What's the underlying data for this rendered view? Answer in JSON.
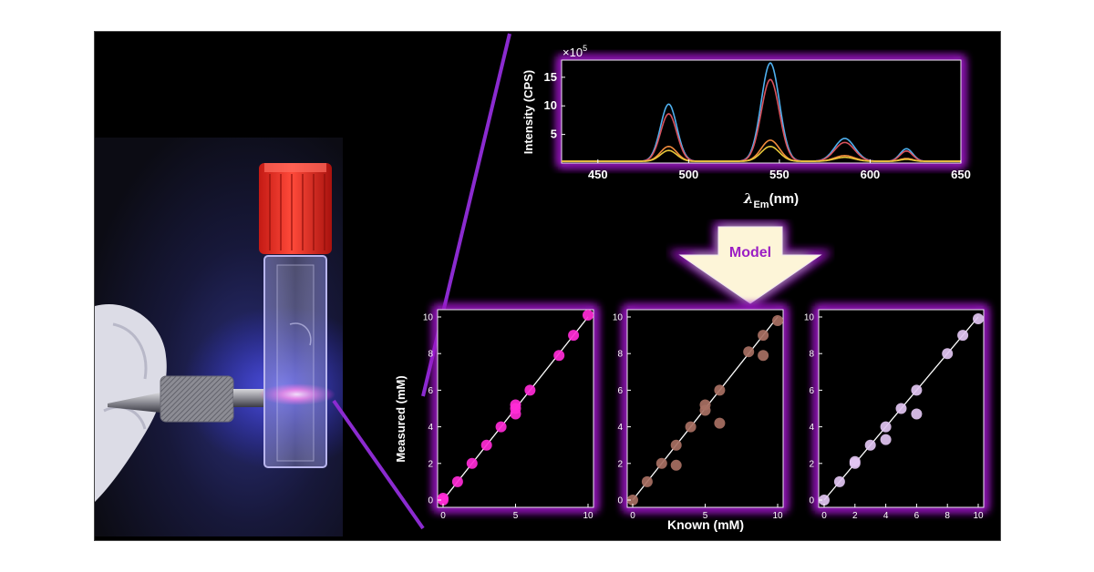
{
  "colors": {
    "glow": "#9b1fc4",
    "pink": "#ff2bd6",
    "brown": "#a87063",
    "lavender": "#e2c6f2",
    "arrow": "#fdf5d8",
    "arrow_label": "#9b1fc4"
  },
  "photo": {
    "subject": "cuvette-with-pipe-fitting"
  },
  "spectrum": {
    "ylabel": "Intensity (CPS)",
    "multiplier_base": "×10",
    "multiplier_exp": "5",
    "xlabel_symbol": "λ",
    "xlabel_sub": "Em",
    "xlabel_unit": "(nm)",
    "xticks": [
      "450",
      "500",
      "550",
      "600",
      "650"
    ],
    "yticks": [
      "5",
      "10",
      "15"
    ]
  },
  "arrow": {
    "label": "Model"
  },
  "scatter": {
    "ylabel": "Measured (mM)",
    "xlabel": "Known  (mM)"
  },
  "chart_data": [
    {
      "type": "line",
      "xlabel": "λEm(nm)",
      "ylabel": "Intensity (CPS)",
      "xlim": [
        430,
        650
      ],
      "ylim": [
        0,
        18
      ],
      "y_multiplier": "×10^5",
      "peaks": [
        489,
        545,
        586,
        620
      ],
      "series": [
        {
          "color": "#4fb0ef",
          "heights": [
            10,
            17.2,
            4,
            2.2
          ]
        },
        {
          "color": "#d9535e",
          "heights": [
            8.3,
            14.3,
            3.3,
            1.8
          ]
        },
        {
          "color": "#f08b3c",
          "heights": [
            2.6,
            3.7,
            1.0,
            0.5
          ]
        },
        {
          "color": "#e8c83a",
          "heights": [
            1.9,
            2.6,
            0.7,
            0.35
          ]
        }
      ]
    },
    {
      "type": "scatter",
      "xlim": [
        0,
        10
      ],
      "ylim": [
        0,
        10
      ],
      "color": "#ff2bd6",
      "xticks": [
        "0",
        "5",
        "10"
      ],
      "yticks": [
        "0",
        "2",
        "4",
        "6",
        "8",
        "10"
      ],
      "x": [
        0,
        0,
        1,
        2,
        3,
        4,
        5,
        5,
        5,
        6,
        8,
        9,
        10
      ],
      "y": [
        0,
        0.1,
        1,
        2,
        3,
        4,
        4.7,
        5,
        5.2,
        6,
        7.9,
        9,
        10.1
      ]
    },
    {
      "type": "scatter",
      "xlim": [
        0,
        10
      ],
      "ylim": [
        0,
        10
      ],
      "color": "#a87063",
      "xticks": [
        "0",
        "5",
        "10"
      ],
      "yticks": [
        "0",
        "2",
        "4",
        "6",
        "8",
        "10"
      ],
      "x": [
        0,
        1,
        2,
        3,
        3,
        4,
        5,
        5,
        6,
        6,
        8,
        9,
        9,
        10
      ],
      "y": [
        0,
        1,
        2,
        3,
        1.9,
        4,
        4.9,
        5.2,
        4.2,
        6,
        8.1,
        7.9,
        9,
        9.8
      ]
    },
    {
      "type": "scatter",
      "xlim": [
        0,
        10
      ],
      "ylim": [
        0,
        10
      ],
      "color": "#e2c6f2",
      "xticks": [
        "0",
        "2",
        "4",
        "6",
        "8",
        "10"
      ],
      "yticks": [
        "0",
        "2",
        "4",
        "6",
        "8",
        "10"
      ],
      "x": [
        0,
        1,
        2,
        2,
        3,
        4,
        4,
        5,
        6,
        6,
        8,
        9,
        10
      ],
      "y": [
        0,
        1,
        2,
        2.1,
        3,
        3.3,
        4,
        5,
        4.7,
        6,
        8,
        9,
        9.9
      ]
    }
  ]
}
